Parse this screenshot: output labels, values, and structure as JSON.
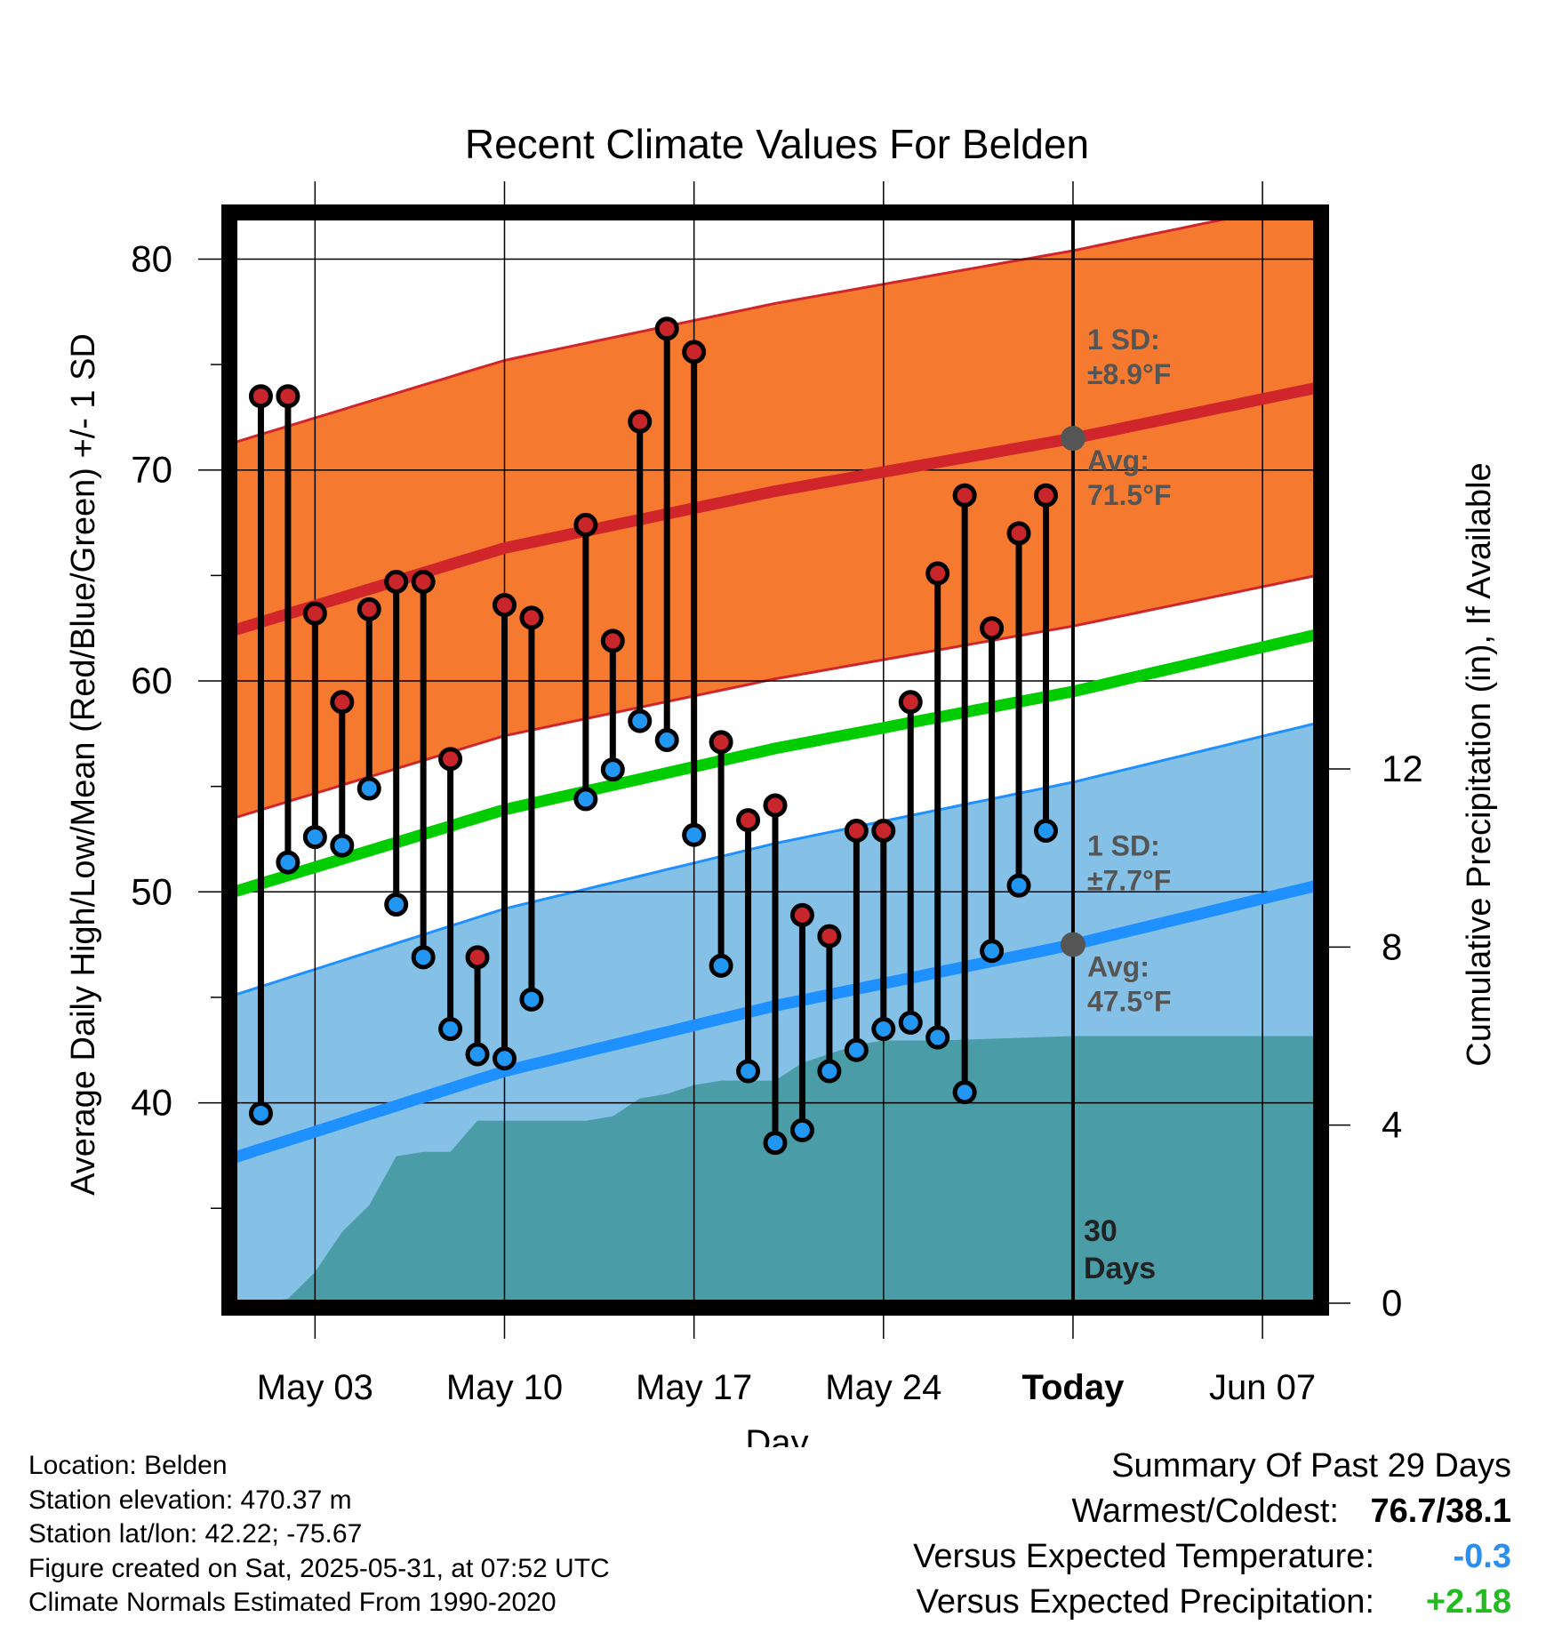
{
  "chart_data": {
    "type": "line",
    "title": "Recent Climate Values For Belden",
    "xlabel": "Day",
    "ylabel": "Average Daily High/Low/Mean (Red/Blue/Green) +/- 1 SD",
    "ylabel_right": "Cumulative Precipitation (in), If Available",
    "x_tick_labels": [
      "May 03",
      "May 10",
      "May 17",
      "May 24",
      "Today",
      "Jun 07"
    ],
    "x_tick_dates": [
      "2025-05-03",
      "2025-05-10",
      "2025-05-17",
      "2025-05-24",
      "2025-05-31",
      "2025-06-07"
    ],
    "xlim": [
      "2025-04-30",
      "2025-06-09"
    ],
    "today": "2025-05-31",
    "y_ticks": [
      40,
      50,
      60,
      70,
      80
    ],
    "ylim": [
      30.5,
      82
    ],
    "y2_ticks": [
      0,
      4,
      8,
      12
    ],
    "y2_ticks_visible": [
      0,
      4,
      8,
      12
    ],
    "y2lim": [
      0,
      24.4
    ],
    "grid": true,
    "annotations": {
      "high_sd_label": "1 SD:",
      "high_sd_value": "±8.9°F",
      "high_avg_label": "Avg:",
      "high_avg_value": "71.5°F",
      "low_sd_label": "1 SD:",
      "low_sd_value": "±7.7°F",
      "low_avg_label": "Avg:",
      "low_avg_value": "47.5°F",
      "window_label_1": "30",
      "window_label_2": "Days"
    },
    "normals": {
      "dates": [
        "2025-04-30",
        "2025-05-10",
        "2025-05-20",
        "2025-05-31",
        "2025-06-09"
      ],
      "high_avg": [
        62.4,
        66.3,
        69.0,
        71.5,
        73.9
      ],
      "high_sd": 8.9,
      "low_avg": [
        37.4,
        41.5,
        44.6,
        47.5,
        50.3
      ],
      "low_sd": 7.7,
      "mean_avg": [
        50.0,
        53.9,
        56.8,
        59.5,
        62.2
      ]
    },
    "series": [
      {
        "name": "High",
        "dates": [
          "2025-05-01",
          "2025-05-02",
          "2025-05-03",
          "2025-05-04",
          "2025-05-05",
          "2025-05-06",
          "2025-05-07",
          "2025-05-08",
          "2025-05-09",
          "2025-05-10",
          "2025-05-11",
          "2025-05-13",
          "2025-05-14",
          "2025-05-15",
          "2025-05-16",
          "2025-05-17",
          "2025-05-18",
          "2025-05-19",
          "2025-05-20",
          "2025-05-21",
          "2025-05-22",
          "2025-05-23",
          "2025-05-24",
          "2025-05-25",
          "2025-05-26",
          "2025-05-27",
          "2025-05-28",
          "2025-05-29",
          "2025-05-30"
        ],
        "values": [
          73.5,
          73.5,
          63.2,
          59.0,
          63.4,
          64.7,
          64.7,
          56.3,
          46.9,
          63.6,
          63.0,
          67.4,
          61.9,
          72.3,
          76.7,
          75.6,
          57.1,
          53.4,
          54.1,
          48.9,
          47.9,
          52.9,
          52.9,
          59.0,
          65.1,
          68.8,
          62.5,
          67.0,
          68.8
        ]
      },
      {
        "name": "Low",
        "dates": [
          "2025-05-01",
          "2025-05-02",
          "2025-05-03",
          "2025-05-04",
          "2025-05-05",
          "2025-05-06",
          "2025-05-07",
          "2025-05-08",
          "2025-05-09",
          "2025-05-10",
          "2025-05-11",
          "2025-05-13",
          "2025-05-14",
          "2025-05-15",
          "2025-05-16",
          "2025-05-17",
          "2025-05-18",
          "2025-05-19",
          "2025-05-20",
          "2025-05-21",
          "2025-05-22",
          "2025-05-23",
          "2025-05-24",
          "2025-05-25",
          "2025-05-26",
          "2025-05-27",
          "2025-05-28",
          "2025-05-29",
          "2025-05-30"
        ],
        "values": [
          39.5,
          51.4,
          52.6,
          52.2,
          54.9,
          49.4,
          46.9,
          43.5,
          42.3,
          42.1,
          44.9,
          54.4,
          55.8,
          58.1,
          57.2,
          52.7,
          46.5,
          41.5,
          38.1,
          38.7,
          41.5,
          42.5,
          43.5,
          43.8,
          43.1,
          40.5,
          47.2,
          50.3,
          52.9
        ]
      },
      {
        "name": "Cumulative Precipitation",
        "dates": [
          "2025-04-30",
          "2025-05-01",
          "2025-05-02",
          "2025-05-03",
          "2025-05-04",
          "2025-05-05",
          "2025-05-06",
          "2025-05-07",
          "2025-05-08",
          "2025-05-09",
          "2025-05-10",
          "2025-05-11",
          "2025-05-12",
          "2025-05-13",
          "2025-05-14",
          "2025-05-15",
          "2025-05-16",
          "2025-05-17",
          "2025-05-18",
          "2025-05-19",
          "2025-05-20",
          "2025-05-21",
          "2025-05-22",
          "2025-05-23",
          "2025-05-24",
          "2025-05-25",
          "2025-05-26",
          "2025-05-27",
          "2025-05-28",
          "2025-05-29",
          "2025-05-30",
          "2025-05-31",
          "2025-06-09"
        ],
        "values": [
          0,
          0,
          0.1,
          0.7,
          1.6,
          2.2,
          3.3,
          3.4,
          3.4,
          4.1,
          4.1,
          4.1,
          4.1,
          4.1,
          4.2,
          4.6,
          4.7,
          4.9,
          5.0,
          5.0,
          5.0,
          5.4,
          5.6,
          5.8,
          5.9,
          5.9,
          5.9,
          5.92,
          5.94,
          5.96,
          5.98,
          6.0,
          6.0
        ]
      }
    ]
  },
  "footer": {
    "location": "Location: Belden",
    "elevation": "Station elevation: 470.37 m",
    "latlon": "Station lat/lon: 42.22; -75.67",
    "created": "Figure created on Sat, 2025-05-31, at 07:52 UTC",
    "normals": "Climate Normals Estimated From 1990-2020"
  },
  "summary": {
    "title": "Summary Of Past 29 Days",
    "warmest_label": "Warmest/Coldest:",
    "warmest_value": "76.7/38.1",
    "temp_label": "Versus Expected Temperature:",
    "temp_value": "-0.3",
    "precip_label": "Versus Expected Precipitation:",
    "precip_value": "+2.18"
  },
  "colors": {
    "high_band": "#f57a30",
    "high_line": "#d0262b",
    "low_band": "#85c1e7",
    "low_line": "#1e90ff",
    "mean_line": "#00cc00",
    "precip": "#4a9da6",
    "high_dot": "#c8262a",
    "low_dot": "#2196f3",
    "annotation": "#555555",
    "temp_text": "#2a8ff0",
    "precip_text": "#22bb22"
  }
}
